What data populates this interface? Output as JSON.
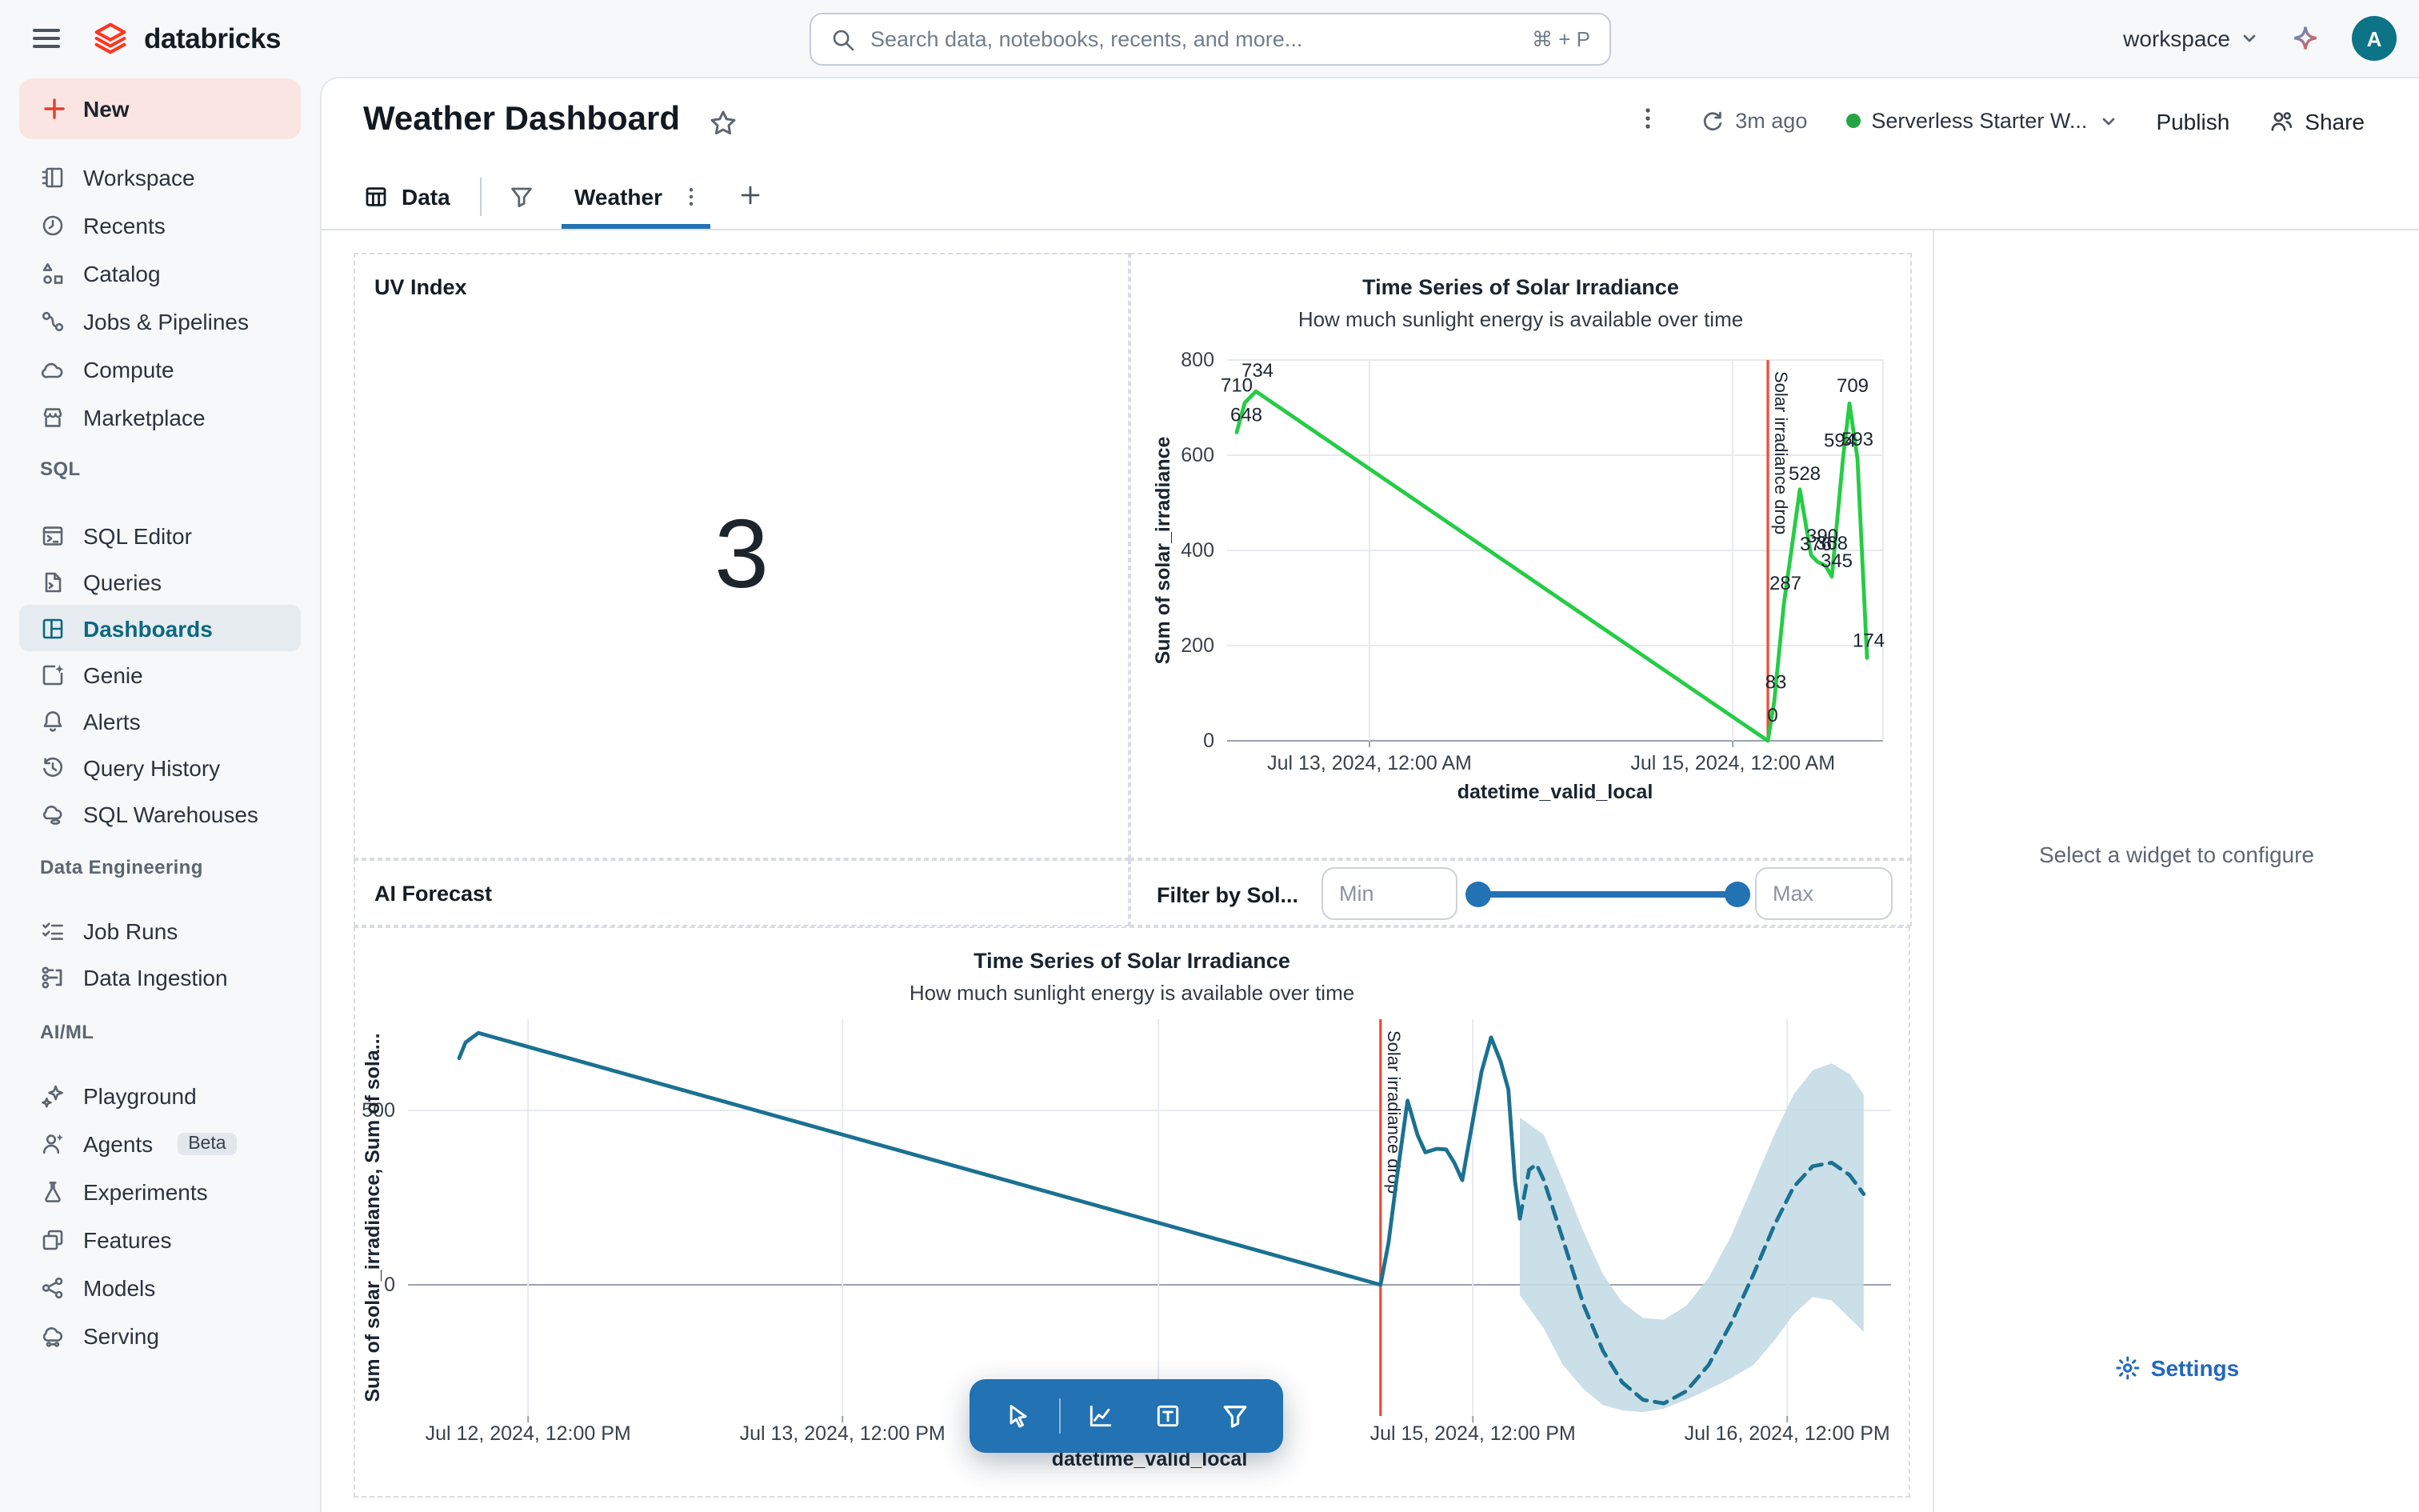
{
  "topbar": {
    "brand": "databricks",
    "search_placeholder": "Search data, notebooks, recents, and more...",
    "search_shortcut": "⌘ + P",
    "workspace_label": "workspace",
    "avatar_letter": "A"
  },
  "sidebar": {
    "new_label": "New",
    "sections": [
      {
        "header": null,
        "items": [
          {
            "label": "Workspace",
            "icon": "workspace"
          },
          {
            "label": "Recents",
            "icon": "recents"
          },
          {
            "label": "Catalog",
            "icon": "catalog"
          },
          {
            "label": "Jobs & Pipelines",
            "icon": "jobs"
          },
          {
            "label": "Compute",
            "icon": "compute"
          },
          {
            "label": "Marketplace",
            "icon": "marketplace"
          }
        ]
      },
      {
        "header": "SQL",
        "items": [
          {
            "label": "SQL Editor",
            "icon": "sql-editor"
          },
          {
            "label": "Queries",
            "icon": "queries"
          },
          {
            "label": "Dashboards",
            "icon": "dashboards",
            "active": true
          },
          {
            "label": "Genie",
            "icon": "genie"
          },
          {
            "label": "Alerts",
            "icon": "alerts"
          },
          {
            "label": "Query History",
            "icon": "history"
          },
          {
            "label": "SQL Warehouses",
            "icon": "warehouse"
          }
        ]
      },
      {
        "header": "Data Engineering",
        "items": [
          {
            "label": "Job Runs",
            "icon": "job-runs"
          },
          {
            "label": "Data Ingestion",
            "icon": "ingestion"
          }
        ]
      },
      {
        "header": "AI/ML",
        "items": [
          {
            "label": "Playground",
            "icon": "playground"
          },
          {
            "label": "Agents",
            "icon": "agents",
            "badge": "Beta"
          },
          {
            "label": "Experiments",
            "icon": "experiments"
          },
          {
            "label": "Features",
            "icon": "features"
          },
          {
            "label": "Models",
            "icon": "models"
          },
          {
            "label": "Serving",
            "icon": "serving"
          }
        ]
      }
    ]
  },
  "header": {
    "title": "Weather Dashboard",
    "refresh_time": "3m ago",
    "warehouse": "Serverless Starter W...",
    "publish_label": "Publish",
    "share_label": "Share"
  },
  "tabs": {
    "data_label": "Data",
    "active_tab": "Weather"
  },
  "widgets": {
    "uv": {
      "title": "UV Index",
      "value": "3"
    },
    "ai_forecast": {
      "label": "AI Forecast"
    },
    "filter": {
      "label": "Filter by Sol...",
      "min_placeholder": "Min",
      "max_placeholder": "Max"
    }
  },
  "config_panel": {
    "empty_text": "Select a widget to configure",
    "settings_label": "Settings"
  },
  "colors": {
    "accent_blue": "#2272b4",
    "brand_red": "#ff3621",
    "status_green": "#27a344",
    "chart_green": "#25cc45",
    "chart_teal": "#1b7191",
    "forecast_band": "#c5dce6",
    "annotation_red": "#ee4b38",
    "link_blue": "#2267c1",
    "active_item_teal": "#0b6880"
  },
  "chart_data": [
    {
      "type": "line",
      "title": "Time Series of Solar Irradiance",
      "subtitle": "How much sunlight energy is available over time",
      "xlabel": "datetime_valid_local",
      "ylabel": "Sum of solar_irradiance",
      "ylim": [
        0,
        800
      ],
      "yticks": [
        0,
        200,
        400,
        600,
        800
      ],
      "grid": true,
      "legend": "none",
      "xticks": [
        {
          "f": 0.217,
          "label": "Jul 13, 2024, 12:00 AM"
        },
        {
          "f": 0.771,
          "label": "Jul 15, 2024, 12:00 AM"
        }
      ],
      "extra_vgrid": [
        1.0
      ],
      "annotation": {
        "f": 0.8244,
        "label": "Solar irradiance drop",
        "color": "#ee4b38"
      },
      "series": [
        {
          "name": "Sum of solar_irradiance",
          "style": "solid",
          "color": "#25cc45",
          "points": [
            {
              "f": 0.0146,
              "v": 648,
              "label": "648",
              "dx": 6,
              "dy": -7
            },
            {
              "f": 0.0268,
              "v": 710,
              "label": "710",
              "dx": -5,
              "dy": -7
            },
            {
              "f": 0.0439,
              "v": 734,
              "label": "734",
              "dx": 1,
              "dy": -9
            },
            {
              "f": 0.8244,
              "v": 0,
              "label": "0",
              "dx": 3,
              "dy": -12
            },
            {
              "f": 0.8341,
              "v": 83,
              "label": "83",
              "dx": 1,
              "dy": -8
            },
            {
              "f": 0.8488,
              "v": 287,
              "label": "287",
              "dx": 1,
              "dy": -9
            },
            {
              "f": 0.8732,
              "v": 528,
              "label": "528",
              "dx": 3,
              "dy": -6
            },
            {
              "f": 0.8902,
              "v": 390,
              "label": "390",
              "dx": 7,
              "dy": -8
            },
            {
              "f": 0.9,
              "v": 376,
              "label": "376",
              "dx": -1,
              "dy": -7
            },
            {
              "f": 0.9122,
              "v": 368,
              "label": "368",
              "dx": 4,
              "dy": -10
            },
            {
              "f": 0.922,
              "v": 345,
              "label": "345",
              "dx": 3,
              "dy": -6
            },
            {
              "f": 0.939,
              "v": 594,
              "label": "594",
              "dx": -2,
              "dy": -7
            },
            {
              "f": 0.9488,
              "v": 709,
              "label": "709",
              "dx": 2,
              "dy": -7
            },
            {
              "f": 0.961,
              "v": 593,
              "label": "593",
              "dx": 0,
              "dy": -8
            },
            {
              "f": 0.9756,
              "v": 174,
              "label": "174",
              "dx": 1,
              "dy": -7
            }
          ]
        }
      ]
    },
    {
      "type": "line",
      "title": "Time Series of Solar Irradiance",
      "subtitle": "How much sunlight energy is available over time",
      "xlabel": "datetime_valid_local",
      "ylabel": "Sum of solar_irradiance, Sum of sola...",
      "ylim": [
        -430,
        770
      ],
      "yticks": [
        0,
        500
      ],
      "grid": true,
      "legend": "none",
      "xticks": [
        {
          "f": 0.081,
          "label": "Jul 12, 2024, 12:00 PM"
        },
        {
          "f": 0.293,
          "label": "Jul 13, 2024, 12:00 PM"
        },
        {
          "f": 0.718,
          "label": "Jul 15, 2024, 12:00 PM"
        },
        {
          "f": 0.93,
          "label": "Jul 16, 2024, 12:00 PM"
        }
      ],
      "extra_vgrid": [
        0.506
      ],
      "annotation": {
        "f": 0.6558,
        "label": "Solar irradiance drop",
        "color": "#ee4b38"
      },
      "band": {
        "color": "#c5dce6",
        "upper": [
          [
            0.7497,
            480
          ],
          [
            0.7659,
            430
          ],
          [
            0.7788,
            300
          ],
          [
            0.7929,
            150
          ],
          [
            0.8058,
            30
          ],
          [
            0.8188,
            -50
          ],
          [
            0.8328,
            -95
          ],
          [
            0.8468,
            -100
          ],
          [
            0.8619,
            -60
          ],
          [
            0.877,
            20
          ],
          [
            0.8921,
            140
          ],
          [
            0.9072,
            290
          ],
          [
            0.9212,
            430
          ],
          [
            0.9342,
            545
          ],
          [
            0.9471,
            615
          ],
          [
            0.96,
            635
          ],
          [
            0.9719,
            605
          ],
          [
            0.9816,
            545
          ]
        ],
        "lower": [
          [
            0.7497,
            -30
          ],
          [
            0.7659,
            -125
          ],
          [
            0.7788,
            -230
          ],
          [
            0.7929,
            -300
          ],
          [
            0.8058,
            -345
          ],
          [
            0.8188,
            -360
          ],
          [
            0.8328,
            -365
          ],
          [
            0.8468,
            -355
          ],
          [
            0.8619,
            -330
          ],
          [
            0.877,
            -300
          ],
          [
            0.8921,
            -268
          ],
          [
            0.9072,
            -230
          ],
          [
            0.9212,
            -160
          ],
          [
            0.9342,
            -85
          ],
          [
            0.9471,
            -35
          ],
          [
            0.96,
            -45
          ],
          [
            0.9719,
            -95
          ],
          [
            0.9816,
            -135
          ]
        ]
      },
      "series": [
        {
          "name": "Sum of solar_irradiance",
          "style": "solid",
          "color": "#1b7191",
          "points": [
            [
              0.0345,
              650
            ],
            [
              0.0388,
              695
            ],
            [
              0.0475,
              722
            ],
            [
              0.6558,
              0
            ],
            [
              0.6612,
              120
            ],
            [
              0.6666,
              300
            ],
            [
              0.674,
              528
            ],
            [
              0.6807,
              430
            ],
            [
              0.686,
              380
            ],
            [
              0.6936,
              390
            ],
            [
              0.7,
              388
            ],
            [
              0.7055,
              350
            ],
            [
              0.7109,
              300
            ],
            [
              0.7163,
              430
            ],
            [
              0.7238,
              610
            ],
            [
              0.7303,
              709
            ],
            [
              0.7368,
              640
            ],
            [
              0.742,
              560
            ],
            [
              0.7464,
              300
            ],
            [
              0.7497,
              190
            ]
          ]
        },
        {
          "name": "Forecast",
          "style": "dashed",
          "color": "#1b7191",
          "points": [
            [
              0.7497,
              190
            ],
            [
              0.756,
              330
            ],
            [
              0.761,
              345
            ],
            [
              0.7659,
              300
            ],
            [
              0.7788,
              130
            ],
            [
              0.7929,
              -60
            ],
            [
              0.8058,
              -190
            ],
            [
              0.8188,
              -280
            ],
            [
              0.8328,
              -330
            ],
            [
              0.8468,
              -340
            ],
            [
              0.8619,
              -305
            ],
            [
              0.877,
              -230
            ],
            [
              0.8921,
              -110
            ],
            [
              0.9072,
              30
            ],
            [
              0.9212,
              170
            ],
            [
              0.9342,
              280
            ],
            [
              0.9471,
              340
            ],
            [
              0.96,
              350
            ],
            [
              0.9719,
              315
            ],
            [
              0.9816,
              260
            ]
          ]
        }
      ]
    }
  ]
}
